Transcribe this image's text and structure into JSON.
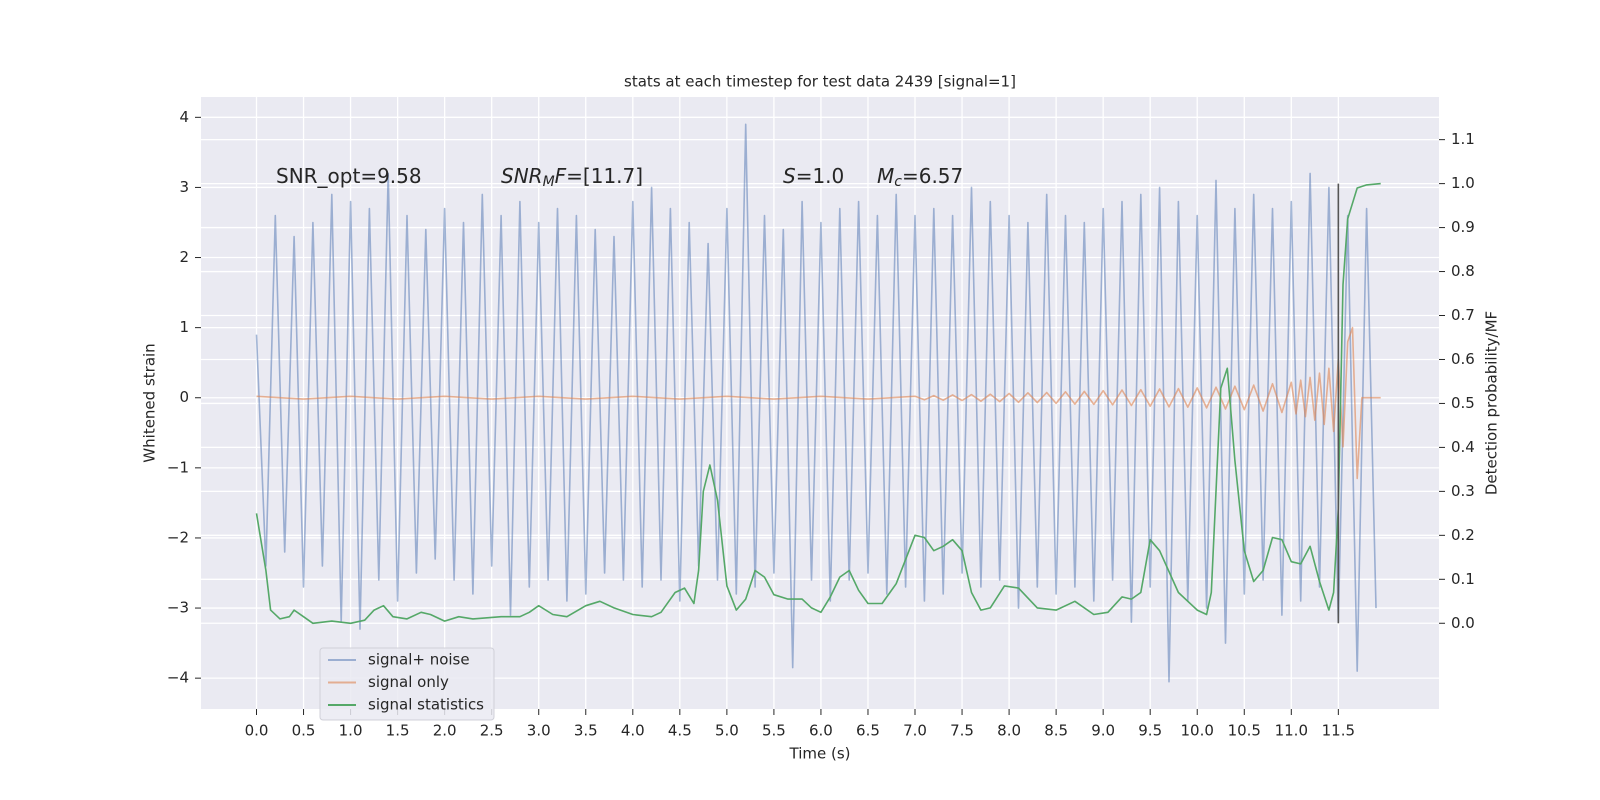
{
  "chart_data": {
    "type": "line",
    "title": "stats at each timestep for test data 2439 [signal=1]",
    "x_label": "Time (s)",
    "y_label": "Whitened strain",
    "y2_label": "Detection probability/MF",
    "grid": true,
    "legend": "lower left",
    "xlim": [
      -0.59,
      12.57
    ],
    "ylim": [
      -4.44,
      4.29
    ],
    "y2lim": [
      -0.195,
      1.197
    ],
    "xticks": [
      {
        "value": 0,
        "label": "0.0"
      },
      0.5,
      {
        "value": 1,
        "label": "1.0"
      },
      1.5,
      {
        "value": 2,
        "label": "2.0"
      },
      2.5,
      {
        "value": 3,
        "label": "3.0"
      },
      3.5,
      {
        "value": 4,
        "label": "4.0"
      },
      4.5,
      {
        "value": 5,
        "label": "5.0"
      },
      5.5,
      {
        "value": 6,
        "label": "6.0"
      },
      6.5,
      {
        "value": 7,
        "label": "7.0"
      },
      7.5,
      {
        "value": 8,
        "label": "8.0"
      },
      8.5,
      {
        "value": 9,
        "label": "9.0"
      },
      9.5,
      {
        "value": 10,
        "label": "10.0"
      },
      10.5,
      {
        "value": 11,
        "label": "11.0"
      },
      11.5
    ],
    "yticks": [
      {
        "value": -4,
        "label": "−4"
      },
      {
        "value": -3,
        "label": "−3"
      },
      {
        "value": -2,
        "label": "−2"
      },
      {
        "value": -1,
        "label": "−1"
      },
      0,
      1,
      2,
      3,
      4
    ],
    "y2ticks": [
      {
        "value": 0,
        "label": "0.0"
      },
      0.1,
      0.2,
      0.3,
      0.4,
      0.5,
      0.6,
      0.7,
      0.8,
      0.9,
      {
        "value": 1,
        "label": "1.0"
      },
      1.1
    ],
    "annotations": [
      [
        {
          "text": "SNR_opt=9.58"
        }
      ],
      [
        {
          "text": "SNR",
          "style": "italic"
        },
        {
          "text": "M",
          "style": "italic-sub"
        },
        {
          "text": "F",
          "style": "italic"
        },
        {
          "text": "=[11.7]"
        }
      ],
      [
        {
          "text": "S",
          "style": "italic"
        },
        {
          "text": "=1.0"
        }
      ],
      [
        {
          "text": "M",
          "style": "italic"
        },
        {
          "text": "c",
          "style": "italic-sub"
        },
        {
          "text": "=6.57"
        }
      ]
    ],
    "vline": {
      "x": 11.5,
      "axis": "y2",
      "y": [
        0,
        1
      ],
      "color": "#555555"
    },
    "series": [
      {
        "name": "signal+ noise",
        "color": "#4c72b0",
        "opacity": 0.5,
        "x": [
          0.0,
          0.1,
          0.2,
          0.3,
          0.4,
          0.5,
          0.6,
          0.7,
          0.8,
          0.9,
          1.0,
          1.1,
          1.2,
          1.3,
          1.4,
          1.5,
          1.6,
          1.7,
          1.8,
          1.9,
          2.0,
          2.1,
          2.2,
          2.3,
          2.4,
          2.5,
          2.6,
          2.7,
          2.8,
          2.9,
          3.0,
          3.1,
          3.2,
          3.3,
          3.4,
          3.5,
          3.6,
          3.7,
          3.8,
          3.9,
          4.0,
          4.1,
          4.2,
          4.3,
          4.4,
          4.5,
          4.6,
          4.7,
          4.8,
          4.9,
          5.0,
          5.1,
          5.2,
          5.3,
          5.4,
          5.5,
          5.6,
          5.7,
          5.8,
          5.9,
          6.0,
          6.1,
          6.2,
          6.3,
          6.4,
          6.5,
          6.6,
          6.7,
          6.8,
          6.9,
          7.0,
          7.1,
          7.2,
          7.3,
          7.4,
          7.5,
          7.6,
          7.7,
          7.8,
          7.9,
          8.0,
          8.1,
          8.2,
          8.3,
          8.4,
          8.5,
          8.6,
          8.7,
          8.8,
          8.9,
          9.0,
          9.1,
          9.2,
          9.3,
          9.4,
          9.5,
          9.6,
          9.7,
          9.8,
          9.9,
          10.0,
          10.1,
          10.2,
          10.3,
          10.4,
          10.5,
          10.6,
          10.7,
          10.8,
          10.9,
          11.0,
          11.1,
          11.2,
          11.3,
          11.4,
          11.5,
          11.6,
          11.7,
          11.8,
          11.9
        ],
        "values": [
          0.9,
          -2.4,
          2.6,
          -2.2,
          2.3,
          -2.7,
          2.5,
          -2.4,
          2.9,
          -3.2,
          2.8,
          -3.3,
          2.7,
          -2.6,
          3.2,
          -2.9,
          2.6,
          -2.5,
          2.4,
          -2.3,
          2.7,
          -2.6,
          2.5,
          -2.8,
          2.9,
          -2.4,
          2.6,
          -3.1,
          2.8,
          -2.7,
          2.5,
          -2.6,
          2.7,
          -2.9,
          2.6,
          -2.8,
          2.4,
          -2.5,
          2.3,
          -2.6,
          2.8,
          -2.7,
          3.0,
          -2.6,
          2.7,
          -2.9,
          2.5,
          -2.4,
          2.2,
          -2.6,
          2.7,
          -2.8,
          3.9,
          -2.7,
          2.6,
          -2.5,
          2.4,
          -3.85,
          2.8,
          -2.6,
          2.5,
          -2.9,
          2.7,
          -2.6,
          2.8,
          -2.5,
          2.6,
          -2.8,
          2.9,
          -2.7,
          2.6,
          -2.9,
          2.7,
          -2.8,
          2.6,
          -2.5,
          3.0,
          -2.7,
          2.8,
          -2.6,
          2.6,
          -3.0,
          2.5,
          -2.7,
          2.9,
          -2.8,
          2.6,
          -2.7,
          2.5,
          -2.9,
          2.7,
          -2.6,
          2.8,
          -3.2,
          2.9,
          -2.7,
          3.0,
          -4.05,
          2.8,
          -2.9,
          2.6,
          -3.0,
          3.1,
          -3.5,
          2.7,
          -2.8,
          2.9,
          -2.6,
          2.7,
          -3.1,
          2.8,
          -2.9,
          3.2,
          -2.7,
          3.0,
          -3.2,
          2.6,
          -3.9,
          2.7,
          -3.0
        ]
      },
      {
        "name": "signal only",
        "color": "#dd8452",
        "opacity": 0.6,
        "x": [
          0,
          0.5,
          1,
          1.5,
          2,
          2.5,
          3,
          3.5,
          4,
          4.5,
          5,
          5.5,
          6,
          6.5,
          7,
          7.1,
          7.2,
          7.3,
          7.4,
          7.5,
          7.6,
          7.7,
          7.8,
          7.9,
          8.0,
          8.1,
          8.2,
          8.3,
          8.4,
          8.5,
          8.6,
          8.7,
          8.8,
          8.9,
          9.0,
          9.1,
          9.2,
          9.3,
          9.4,
          9.5,
          9.6,
          9.7,
          9.8,
          9.9,
          10.0,
          10.1,
          10.2,
          10.3,
          10.4,
          10.5,
          10.6,
          10.7,
          10.8,
          10.9,
          11.0,
          11.05,
          11.1,
          11.15,
          11.2,
          11.25,
          11.3,
          11.35,
          11.4,
          11.45,
          11.5,
          11.55,
          11.6,
          11.65,
          11.7,
          11.75,
          11.95
        ],
        "values": [
          0.02,
          -0.02,
          0.02,
          -0.02,
          0.02,
          -0.02,
          0.02,
          -0.02,
          0.02,
          -0.02,
          0.02,
          -0.02,
          0.02,
          -0.02,
          0.02,
          -0.03,
          0.03,
          -0.035,
          0.04,
          -0.04,
          0.045,
          -0.05,
          0.05,
          -0.055,
          0.06,
          -0.065,
          0.07,
          -0.07,
          0.075,
          -0.08,
          0.085,
          -0.09,
          0.09,
          -0.095,
          0.1,
          -0.1,
          0.11,
          -0.11,
          0.115,
          -0.12,
          0.125,
          -0.13,
          0.13,
          -0.135,
          0.14,
          -0.145,
          0.15,
          -0.16,
          0.165,
          -0.17,
          0.18,
          -0.19,
          0.2,
          -0.21,
          0.22,
          -0.23,
          0.25,
          -0.27,
          0.29,
          -0.32,
          0.35,
          -0.38,
          0.42,
          -0.48,
          0.55,
          -0.7,
          0.8,
          1.0,
          -1.15,
          0,
          0
        ]
      },
      {
        "name": "signal statistics",
        "color": "#55a868",
        "opacity": 1,
        "axis": "y2",
        "x": [
          0.0,
          0.1,
          0.15,
          0.25,
          0.35,
          0.4,
          0.5,
          0.6,
          0.8,
          1.0,
          1.15,
          1.25,
          1.35,
          1.45,
          1.6,
          1.75,
          1.85,
          2.0,
          2.15,
          2.3,
          2.6,
          2.8,
          2.9,
          3.0,
          3.15,
          3.3,
          3.5,
          3.65,
          3.8,
          4.0,
          4.2,
          4.3,
          4.45,
          4.55,
          4.65,
          4.7,
          4.75,
          4.82,
          4.9,
          5.0,
          5.1,
          5.2,
          5.3,
          5.4,
          5.5,
          5.65,
          5.8,
          5.9,
          6.0,
          6.1,
          6.2,
          6.3,
          6.4,
          6.5,
          6.65,
          6.8,
          7.0,
          7.1,
          7.2,
          7.3,
          7.4,
          7.5,
          7.6,
          7.7,
          7.8,
          7.95,
          8.1,
          8.3,
          8.5,
          8.7,
          8.9,
          9.05,
          9.2,
          9.3,
          9.4,
          9.5,
          9.6,
          9.8,
          10.0,
          10.1,
          10.15,
          10.25,
          10.32,
          10.4,
          10.5,
          10.6,
          10.7,
          10.8,
          10.9,
          11.0,
          11.1,
          11.2,
          11.3,
          11.4,
          11.45,
          11.5,
          11.55,
          11.6,
          11.7,
          11.8,
          11.95
        ],
        "values": [
          0.25,
          0.12,
          0.03,
          0.01,
          0.015,
          0.03,
          0.015,
          0.0,
          0.005,
          0.0,
          0.007,
          0.03,
          0.04,
          0.015,
          0.01,
          0.025,
          0.02,
          0.005,
          0.015,
          0.01,
          0.015,
          0.015,
          0.025,
          0.04,
          0.02,
          0.015,
          0.04,
          0.05,
          0.035,
          0.02,
          0.015,
          0.025,
          0.07,
          0.08,
          0.045,
          0.12,
          0.3,
          0.36,
          0.28,
          0.085,
          0.03,
          0.055,
          0.12,
          0.105,
          0.065,
          0.055,
          0.055,
          0.035,
          0.025,
          0.06,
          0.105,
          0.12,
          0.075,
          0.045,
          0.045,
          0.09,
          0.2,
          0.195,
          0.165,
          0.175,
          0.19,
          0.165,
          0.07,
          0.03,
          0.035,
          0.085,
          0.08,
          0.035,
          0.03,
          0.05,
          0.02,
          0.025,
          0.06,
          0.055,
          0.07,
          0.19,
          0.165,
          0.07,
          0.03,
          0.02,
          0.07,
          0.535,
          0.58,
          0.37,
          0.165,
          0.095,
          0.12,
          0.195,
          0.19,
          0.14,
          0.135,
          0.175,
          0.095,
          0.03,
          0.07,
          0.26,
          0.77,
          0.92,
          0.99,
          0.997,
          1.0
        ]
      }
    ]
  }
}
